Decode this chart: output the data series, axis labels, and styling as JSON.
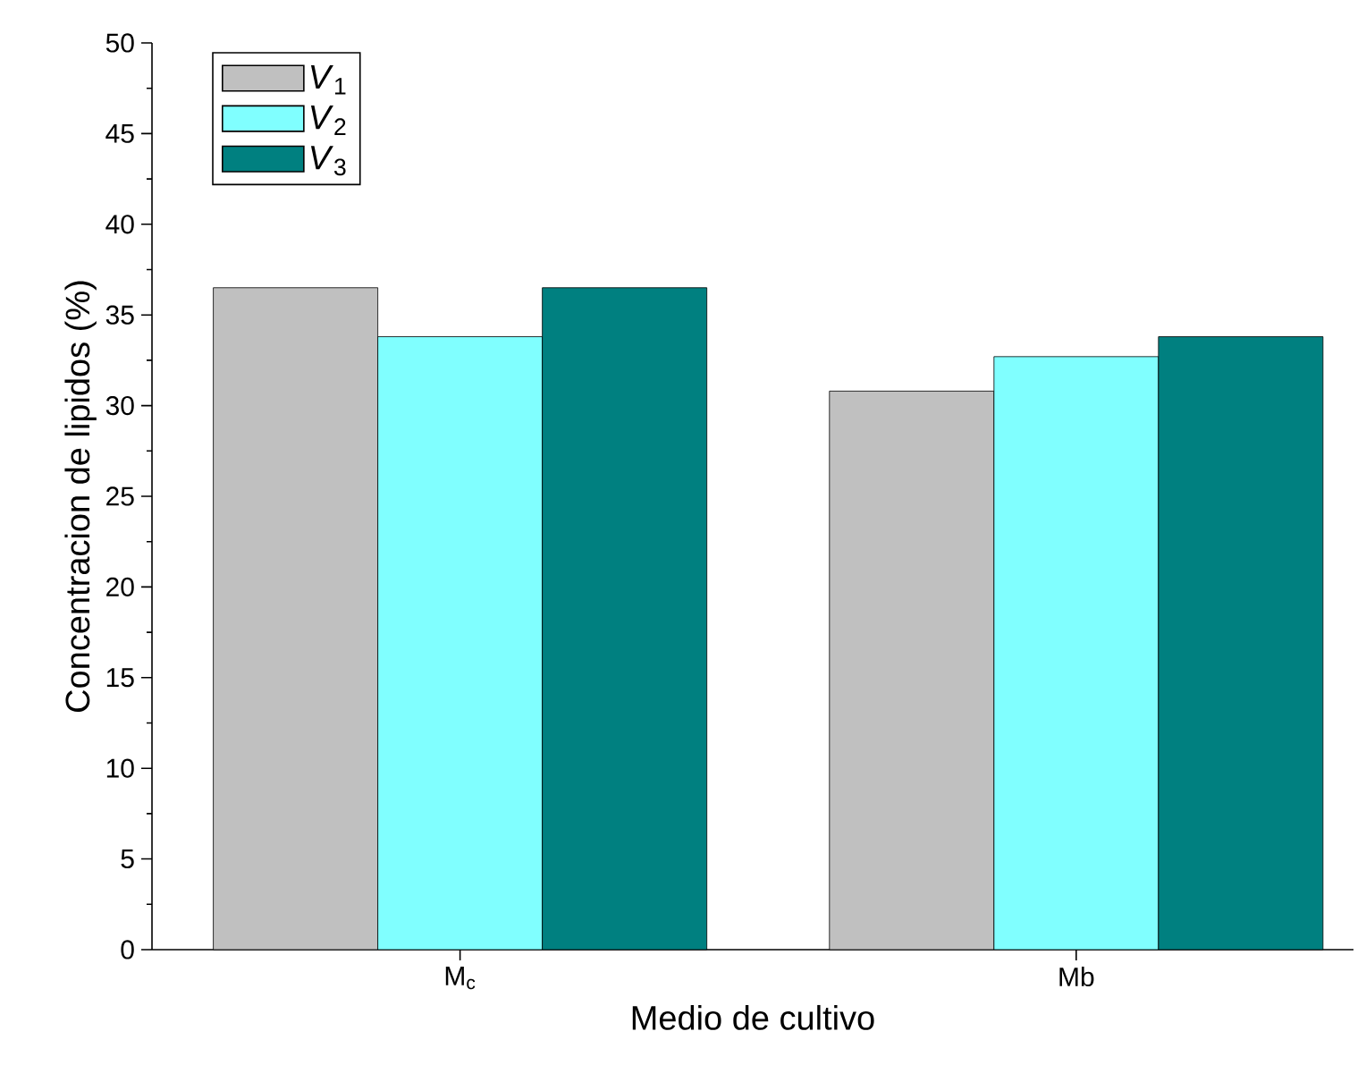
{
  "chart_data": {
    "type": "bar",
    "xlabel": "Medio de cultivo",
    "ylabel": "Concentracion de lipidos (%)",
    "categories": [
      "M$_{c}$",
      "Mb"
    ],
    "series": [
      {
        "name": "*V*$_{1}$",
        "color": "#c0c0c0",
        "values": [
          36.5,
          30.8
        ]
      },
      {
        "name": "*V*$_{2}$",
        "color": "#80ffff",
        "values": [
          33.8,
          32.7
        ]
      },
      {
        "name": "*V*$_{3}$",
        "color": "#008080",
        "values": [
          36.5,
          33.8
        ]
      }
    ],
    "ylim": [
      0,
      50
    ],
    "yticks": [
      0,
      5,
      10,
      15,
      20,
      25,
      30,
      35,
      40,
      45,
      50
    ],
    "legend": "top left",
    "grid": false
  }
}
